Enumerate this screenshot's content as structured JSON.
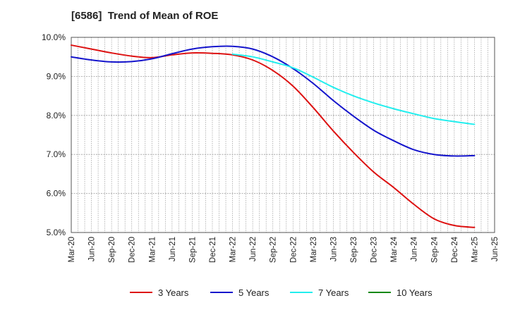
{
  "chart_data": {
    "type": "line",
    "title": "[6586]  Trend of Mean of ROE",
    "xlabel": "",
    "ylabel": "",
    "ylim": [
      5.0,
      10.0
    ],
    "y_ticks": [
      "5.0%",
      "6.0%",
      "7.0%",
      "8.0%",
      "9.0%",
      "10.0%"
    ],
    "x_ticks": [
      "Mar-20",
      "Jun-20",
      "Sep-20",
      "Dec-20",
      "Mar-21",
      "Jun-21",
      "Sep-21",
      "Dec-21",
      "Mar-22",
      "Jun-22",
      "Sep-22",
      "Dec-22",
      "Mar-23",
      "Jun-23",
      "Sep-23",
      "Dec-23",
      "Mar-24",
      "Jun-24",
      "Sep-24",
      "Dec-24",
      "Mar-25",
      "Jun-25"
    ],
    "grid": true,
    "legend_position": "bottom",
    "series": [
      {
        "name": "3 Years",
        "color": "#dd1111",
        "start_index": 0,
        "values": [
          9.8,
          9.7,
          9.6,
          9.52,
          9.48,
          9.55,
          9.6,
          9.59,
          9.55,
          9.42,
          9.15,
          8.75,
          8.2,
          7.6,
          7.05,
          6.55,
          6.15,
          5.72,
          5.35,
          5.18,
          5.13
        ]
      },
      {
        "name": "5 Years",
        "color": "#1515cc",
        "start_index": 0,
        "values": [
          9.5,
          9.42,
          9.37,
          9.38,
          9.45,
          9.58,
          9.7,
          9.76,
          9.77,
          9.7,
          9.5,
          9.2,
          8.82,
          8.38,
          7.98,
          7.62,
          7.35,
          7.12,
          7.0,
          6.96,
          6.97
        ]
      },
      {
        "name": "7 Years",
        "color": "#22eeee",
        "start_index": 8,
        "values": [
          9.57,
          9.5,
          9.37,
          9.22,
          8.98,
          8.72,
          8.5,
          8.32,
          8.17,
          8.04,
          7.92,
          7.84,
          7.77
        ]
      },
      {
        "name": "10 Years",
        "color": "#118811",
        "start_index": 0,
        "values": []
      }
    ]
  }
}
